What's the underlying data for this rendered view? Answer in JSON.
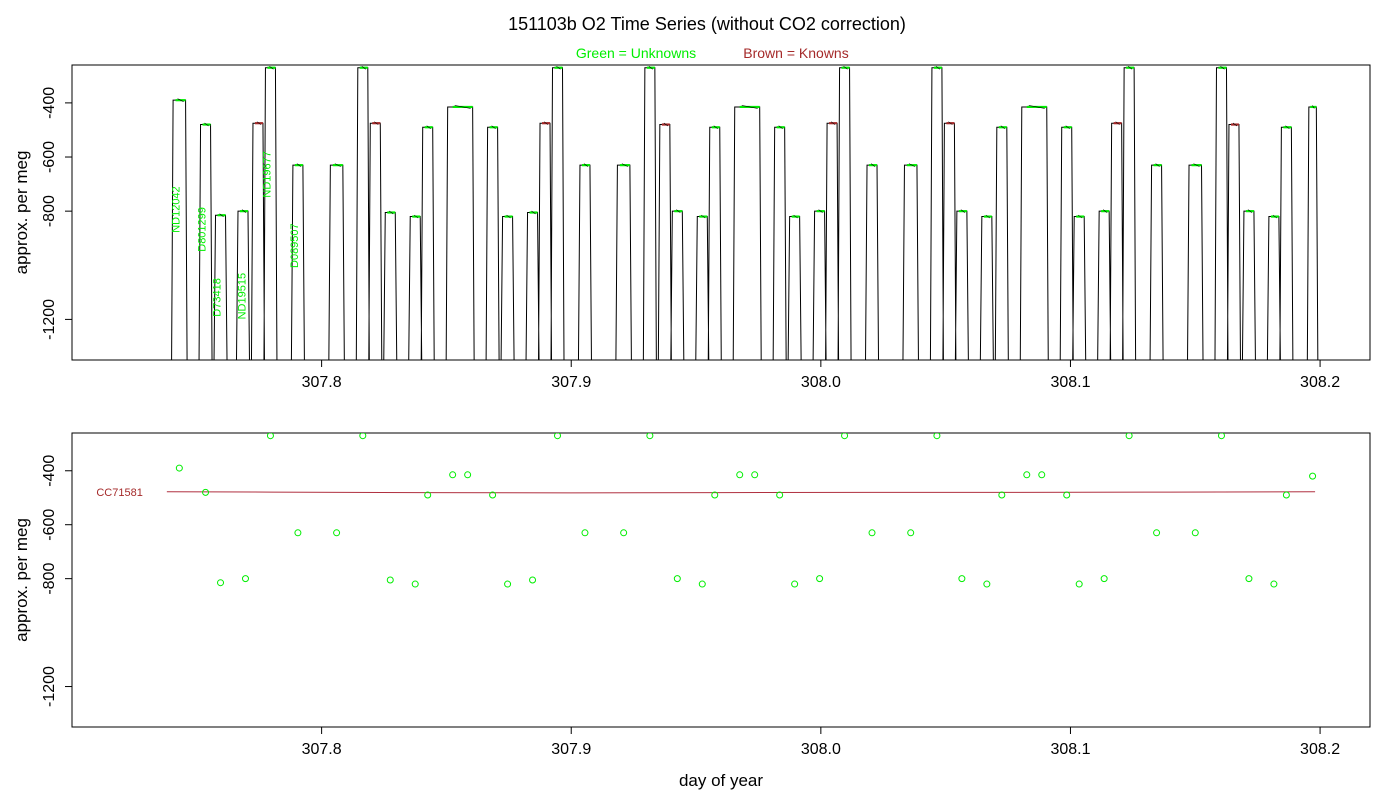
{
  "title": "151103b   O2 Time Series (without CO2 correction)",
  "legend": {
    "unknowns": "Green = Unknowns",
    "knowns": "Brown = Knowns",
    "unknowns_color": "#00ee00",
    "knowns_color": "#a52a2a"
  },
  "colors": {
    "trace": "#000000",
    "unknown_point": "#00ee00",
    "known_point": "#a52a2a",
    "fit_line": "#b03040",
    "axes": "#000000"
  },
  "chart_data": [
    {
      "type": "line",
      "panel": "top",
      "xlabel": "",
      "ylabel": "approx. per meg",
      "xlim": [
        307.7,
        308.22
      ],
      "ylim": [
        -1350,
        -260
      ],
      "x_ticks": [
        "307.8",
        "307.9",
        "308.0",
        "308.1",
        "308.2"
      ],
      "y_ticks": [
        "-400",
        "-600",
        "-800",
        "-1200"
      ],
      "y_tick_values": [
        -400,
        -600,
        -800,
        -1200
      ],
      "grid": false,
      "plateaus": [
        {
          "x_start": 307.7405,
          "x_end": 307.7455,
          "y": -390,
          "kind": "unknown"
        },
        {
          "x_start": 307.7515,
          "x_end": 307.7555,
          "y": -480,
          "kind": "unknown"
        },
        {
          "x_start": 307.7575,
          "x_end": 307.7615,
          "y": -815,
          "kind": "unknown"
        },
        {
          "x_start": 307.7665,
          "x_end": 307.7705,
          "y": -800,
          "kind": "unknown"
        },
        {
          "x_start": 307.7725,
          "x_end": 307.7765,
          "y": -475,
          "kind": "known"
        },
        {
          "x_start": 307.7775,
          "x_end": 307.7815,
          "y": -270,
          "kind": "unknown"
        },
        {
          "x_start": 307.7885,
          "x_end": 307.7925,
          "y": -630,
          "kind": "unknown"
        },
        {
          "x_start": 307.8035,
          "x_end": 307.8085,
          "y": -630,
          "kind": "unknown"
        },
        {
          "x_start": 307.8145,
          "x_end": 307.8185,
          "y": -270,
          "kind": "unknown"
        },
        {
          "x_start": 307.8195,
          "x_end": 307.8235,
          "y": -475,
          "kind": "known"
        },
        {
          "x_start": 307.8255,
          "x_end": 307.8295,
          "y": -805,
          "kind": "unknown"
        },
        {
          "x_start": 307.8355,
          "x_end": 307.8395,
          "y": -820,
          "kind": "unknown"
        },
        {
          "x_start": 307.8405,
          "x_end": 307.8445,
          "y": -490,
          "kind": "unknown"
        },
        {
          "x_start": 307.8505,
          "x_end": 307.8605,
          "y": -415,
          "kind": "unknown"
        },
        {
          "x_start": 307.8665,
          "x_end": 307.8705,
          "y": -490,
          "kind": "unknown"
        },
        {
          "x_start": 307.8725,
          "x_end": 307.8765,
          "y": -820,
          "kind": "unknown"
        },
        {
          "x_start": 307.8825,
          "x_end": 307.8865,
          "y": -805,
          "kind": "unknown"
        },
        {
          "x_start": 307.8875,
          "x_end": 307.8915,
          "y": -475,
          "kind": "known"
        },
        {
          "x_start": 307.8925,
          "x_end": 307.8965,
          "y": -270,
          "kind": "unknown"
        },
        {
          "x_start": 307.9035,
          "x_end": 307.9075,
          "y": -630,
          "kind": "unknown"
        },
        {
          "x_start": 307.9185,
          "x_end": 307.9235,
          "y": -630,
          "kind": "unknown"
        },
        {
          "x_start": 307.9295,
          "x_end": 307.9335,
          "y": -270,
          "kind": "unknown"
        },
        {
          "x_start": 307.9355,
          "x_end": 307.9395,
          "y": -480,
          "kind": "known"
        },
        {
          "x_start": 307.9405,
          "x_end": 307.9445,
          "y": -800,
          "kind": "unknown"
        },
        {
          "x_start": 307.9505,
          "x_end": 307.9545,
          "y": -820,
          "kind": "unknown"
        },
        {
          "x_start": 307.9555,
          "x_end": 307.9595,
          "y": -490,
          "kind": "unknown"
        },
        {
          "x_start": 307.9655,
          "x_end": 307.9755,
          "y": -415,
          "kind": "unknown"
        },
        {
          "x_start": 307.9815,
          "x_end": 307.9855,
          "y": -490,
          "kind": "unknown"
        },
        {
          "x_start": 307.9875,
          "x_end": 307.9915,
          "y": -820,
          "kind": "unknown"
        },
        {
          "x_start": 307.9975,
          "x_end": 308.0015,
          "y": -800,
          "kind": "unknown"
        },
        {
          "x_start": 308.0025,
          "x_end": 308.0065,
          "y": -475,
          "kind": "known"
        },
        {
          "x_start": 308.0075,
          "x_end": 308.0115,
          "y": -270,
          "kind": "unknown"
        },
        {
          "x_start": 308.0185,
          "x_end": 308.0225,
          "y": -630,
          "kind": "unknown"
        },
        {
          "x_start": 308.0335,
          "x_end": 308.0385,
          "y": -630,
          "kind": "unknown"
        },
        {
          "x_start": 308.0445,
          "x_end": 308.0485,
          "y": -270,
          "kind": "unknown"
        },
        {
          "x_start": 308.0495,
          "x_end": 308.0535,
          "y": -475,
          "kind": "known"
        },
        {
          "x_start": 308.0545,
          "x_end": 308.0585,
          "y": -800,
          "kind": "unknown"
        },
        {
          "x_start": 308.0645,
          "x_end": 308.0685,
          "y": -820,
          "kind": "unknown"
        },
        {
          "x_start": 308.0705,
          "x_end": 308.0745,
          "y": -490,
          "kind": "unknown"
        },
        {
          "x_start": 308.0805,
          "x_end": 308.0905,
          "y": -415,
          "kind": "unknown"
        },
        {
          "x_start": 308.0965,
          "x_end": 308.1005,
          "y": -490,
          "kind": "unknown"
        },
        {
          "x_start": 308.1015,
          "x_end": 308.1055,
          "y": -820,
          "kind": "unknown"
        },
        {
          "x_start": 308.1115,
          "x_end": 308.1155,
          "y": -800,
          "kind": "unknown"
        },
        {
          "x_start": 308.1165,
          "x_end": 308.1205,
          "y": -475,
          "kind": "known"
        },
        {
          "x_start": 308.1215,
          "x_end": 308.1255,
          "y": -270,
          "kind": "unknown"
        },
        {
          "x_start": 308.1325,
          "x_end": 308.1365,
          "y": -630,
          "kind": "unknown"
        },
        {
          "x_start": 308.1475,
          "x_end": 308.1525,
          "y": -630,
          "kind": "unknown"
        },
        {
          "x_start": 308.1585,
          "x_end": 308.1625,
          "y": -270,
          "kind": "unknown"
        },
        {
          "x_start": 308.1635,
          "x_end": 308.1675,
          "y": -480,
          "kind": "known"
        },
        {
          "x_start": 308.1695,
          "x_end": 308.1735,
          "y": -800,
          "kind": "unknown"
        },
        {
          "x_start": 308.1795,
          "x_end": 308.1835,
          "y": -820,
          "kind": "unknown"
        },
        {
          "x_start": 308.1845,
          "x_end": 308.1885,
          "y": -490,
          "kind": "unknown"
        },
        {
          "x_start": 308.1955,
          "x_end": 308.1985,
          "y": -415,
          "kind": "unknown"
        }
      ],
      "annotations": [
        {
          "text": "ND12042",
          "x": 307.743,
          "y": -880
        },
        {
          "text": "D801299",
          "x": 307.7535,
          "y": -950
        },
        {
          "text": "D73418",
          "x": 307.7595,
          "y": -1190
        },
        {
          "text": "ND19515",
          "x": 307.7695,
          "y": -1200
        },
        {
          "text": "ND19677",
          "x": 307.7795,
          "y": -750
        },
        {
          "text": "D089507",
          "x": 307.7905,
          "y": -1010
        }
      ]
    },
    {
      "type": "scatter",
      "panel": "bottom",
      "xlabel": "day of year",
      "ylabel": "approx. per meg",
      "xlim": [
        307.7,
        308.22
      ],
      "ylim": [
        -1350,
        -260
      ],
      "x_ticks": [
        "307.8",
        "307.9",
        "308.0",
        "308.1",
        "308.2"
      ],
      "y_ticks": [
        "-400",
        "-600",
        "-800",
        "-1200"
      ],
      "y_tick_values": [
        -400,
        -600,
        -800,
        -1200
      ],
      "grid": false,
      "points": [
        {
          "x": 307.743,
          "y": -390
        },
        {
          "x": 307.7535,
          "y": -480
        },
        {
          "x": 307.7595,
          "y": -815
        },
        {
          "x": 307.7695,
          "y": -800
        },
        {
          "x": 307.7795,
          "y": -270
        },
        {
          "x": 307.7905,
          "y": -630
        },
        {
          "x": 307.806,
          "y": -630
        },
        {
          "x": 307.8165,
          "y": -270
        },
        {
          "x": 307.8275,
          "y": -805
        },
        {
          "x": 307.8375,
          "y": -820
        },
        {
          "x": 307.8425,
          "y": -490
        },
        {
          "x": 307.8525,
          "y": -415
        },
        {
          "x": 307.8585,
          "y": -415
        },
        {
          "x": 307.8685,
          "y": -490
        },
        {
          "x": 307.8745,
          "y": -820
        },
        {
          "x": 307.8845,
          "y": -805
        },
        {
          "x": 307.8945,
          "y": -270
        },
        {
          "x": 307.9055,
          "y": -630
        },
        {
          "x": 307.921,
          "y": -630
        },
        {
          "x": 307.9315,
          "y": -270
        },
        {
          "x": 307.9425,
          "y": -800
        },
        {
          "x": 307.9525,
          "y": -820
        },
        {
          "x": 307.9575,
          "y": -490
        },
        {
          "x": 307.9675,
          "y": -415
        },
        {
          "x": 307.9735,
          "y": -415
        },
        {
          "x": 307.9835,
          "y": -490
        },
        {
          "x": 307.9895,
          "y": -820
        },
        {
          "x": 307.9995,
          "y": -800
        },
        {
          "x": 308.0095,
          "y": -270
        },
        {
          "x": 308.0205,
          "y": -630
        },
        {
          "x": 308.036,
          "y": -630
        },
        {
          "x": 308.0465,
          "y": -270
        },
        {
          "x": 308.0565,
          "y": -800
        },
        {
          "x": 308.0665,
          "y": -820
        },
        {
          "x": 308.0725,
          "y": -490
        },
        {
          "x": 308.0825,
          "y": -415
        },
        {
          "x": 308.0885,
          "y": -415
        },
        {
          "x": 308.0985,
          "y": -490
        },
        {
          "x": 308.1035,
          "y": -820
        },
        {
          "x": 308.1135,
          "y": -800
        },
        {
          "x": 308.1235,
          "y": -270
        },
        {
          "x": 308.1345,
          "y": -630
        },
        {
          "x": 308.15,
          "y": -630
        },
        {
          "x": 308.1605,
          "y": -270
        },
        {
          "x": 308.1715,
          "y": -800
        },
        {
          "x": 308.1815,
          "y": -820
        },
        {
          "x": 308.1865,
          "y": -490
        },
        {
          "x": 308.197,
          "y": -420
        }
      ],
      "fit_line": {
        "label": "CC71581",
        "points": [
          {
            "x": 307.738,
            "y": -478
          },
          {
            "x": 307.78,
            "y": -479
          },
          {
            "x": 307.84,
            "y": -481
          },
          {
            "x": 307.9,
            "y": -482
          },
          {
            "x": 307.96,
            "y": -481
          },
          {
            "x": 308.02,
            "y": -480
          },
          {
            "x": 308.08,
            "y": -480
          },
          {
            "x": 308.14,
            "y": -479
          },
          {
            "x": 308.198,
            "y": -478
          }
        ]
      }
    }
  ]
}
